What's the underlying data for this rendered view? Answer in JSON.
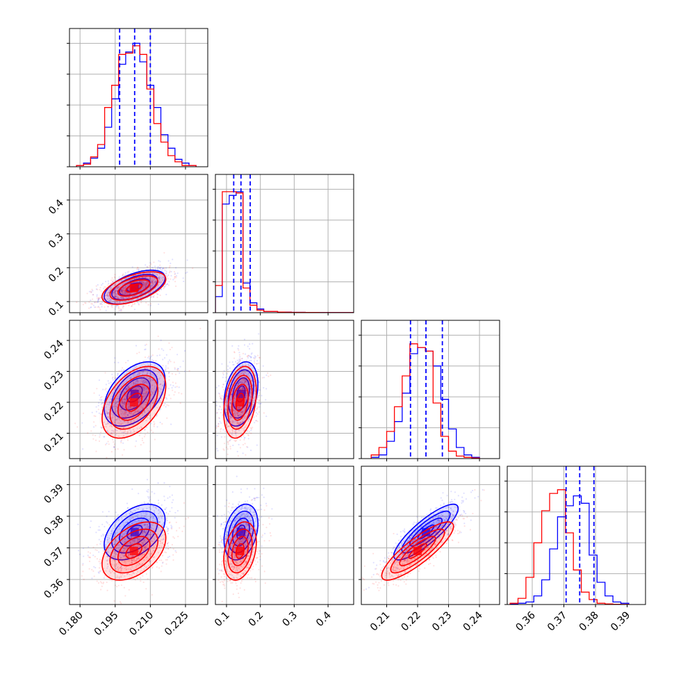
{
  "chart_data": {
    "type": "corner",
    "grid": true,
    "series": [
      {
        "color": "#0000ff"
      },
      {
        "color": "#ff0000"
      }
    ],
    "quantile_line_color": "#0000ff",
    "parameters": [
      {
        "range": [
          0.1755,
          0.2345
        ],
        "ticks": [
          0.18,
          0.195,
          0.21,
          0.225
        ],
        "tick_labels": [
          "0.180",
          "0.195",
          "0.210",
          "0.225"
        ]
      },
      {
        "range": [
          0.0672,
          0.4757
        ],
        "ticks": [
          0.1,
          0.2,
          0.3,
          0.4
        ],
        "tick_labels": [
          "0.1",
          "0.2",
          "0.3",
          "0.4"
        ]
      },
      {
        "range": [
          0.2018,
          0.2465
        ],
        "ticks": [
          0.21,
          0.22,
          0.23,
          0.24
        ],
        "tick_labels": [
          "0.21",
          "0.22",
          "0.23",
          "0.24"
        ]
      },
      {
        "range": [
          0.3521,
          0.3958
        ],
        "ticks": [
          0.36,
          0.37,
          0.38,
          0.39
        ],
        "tick_labels": [
          "0.36",
          "0.37",
          "0.38",
          "0.39"
        ]
      }
    ],
    "quantiles": [
      [
        0.1969,
        0.2033,
        0.21
      ],
      [
        0.1213,
        0.1427,
        0.17
      ],
      [
        0.2177,
        0.2227,
        0.228
      ],
      [
        0.3707,
        0.375,
        0.3795
      ]
    ],
    "marginals": [
      {
        "edges": [
          0.1785,
          0.1815,
          0.1845,
          0.1875,
          0.1905,
          0.1935,
          0.1965,
          0.1995,
          0.2025,
          0.2055,
          0.2085,
          0.2115,
          0.2145,
          0.2175,
          0.2205,
          0.2235,
          0.2265,
          0.2295
        ],
        "blue": [
          0.01,
          0.03,
          0.07,
          0.15,
          0.32,
          0.55,
          0.83,
          0.93,
          1.0,
          0.85,
          0.66,
          0.48,
          0.26,
          0.15,
          0.06,
          0.03,
          0.01
        ],
        "red": [
          0.01,
          0.02,
          0.08,
          0.18,
          0.48,
          0.66,
          0.91,
          0.92,
          0.98,
          0.91,
          0.63,
          0.35,
          0.2,
          0.09,
          0.04,
          0.01,
          0.01
        ]
      },
      {
        "edges": [
          0.0672,
          0.0876,
          0.108,
          0.1285,
          0.1489,
          0.1693,
          0.1897,
          0.2101,
          0.2306,
          0.251,
          0.2714,
          0.2918,
          0.3123,
          0.3327,
          0.3531,
          0.3735,
          0.3939,
          0.4144,
          0.4348,
          0.4552,
          0.4757
        ],
        "blue": [
          0.13,
          0.88,
          0.95,
          0.98,
          0.24,
          0.08,
          0.03,
          0.01,
          0.01,
          0.005,
          0.005,
          0.003,
          0.003,
          0.002,
          0.002,
          0.001,
          0.001,
          0.001,
          0.001,
          0.001
        ],
        "red": [
          0.22,
          0.98,
          0.98,
          0.97,
          0.2,
          0.06,
          0.02,
          0.01,
          0.01,
          0.005,
          0.004,
          0.003,
          0.003,
          0.002,
          0.002,
          0.001,
          0.001,
          0.001,
          0.001,
          0.001
        ]
      },
      {
        "edges": [
          0.205,
          0.2075,
          0.21,
          0.2125,
          0.215,
          0.2175,
          0.22,
          0.2225,
          0.225,
          0.2275,
          0.23,
          0.2325,
          0.235,
          0.2375,
          0.24
        ],
        "blue": [
          0.01,
          0.03,
          0.14,
          0.3,
          0.53,
          0.85,
          0.9,
          0.87,
          0.75,
          0.48,
          0.24,
          0.09,
          0.03,
          0.01
        ],
        "red": [
          0.03,
          0.09,
          0.22,
          0.42,
          0.67,
          0.93,
          0.9,
          0.87,
          0.45,
          0.18,
          0.06,
          0.02,
          0.01,
          0.005
        ]
      },
      {
        "edges": [
          0.353,
          0.3555,
          0.358,
          0.3605,
          0.363,
          0.3655,
          0.368,
          0.3705,
          0.373,
          0.3755,
          0.378,
          0.3805,
          0.383,
          0.3855,
          0.388,
          0.3905
        ],
        "blue": [
          0.005,
          0.01,
          0.02,
          0.07,
          0.2,
          0.45,
          0.71,
          0.8,
          0.88,
          0.82,
          0.4,
          0.18,
          0.07,
          0.02,
          0.01
        ],
        "red": [
          0.01,
          0.05,
          0.22,
          0.5,
          0.76,
          0.9,
          0.93,
          0.58,
          0.28,
          0.1,
          0.04,
          0.01,
          0.005,
          0.002,
          0.001
        ]
      }
    ],
    "joint": {
      "blue": {
        "mean": [
          0.2033,
          0.1427,
          0.2227,
          0.375
        ],
        "sd": [
          0.0065,
          0.025,
          0.0052,
          0.0044
        ],
        "corr": [
          [
            1,
            0.55,
            0.45,
            0.45
          ],
          [
            0.55,
            1,
            0.3,
            0.3
          ],
          [
            0.45,
            0.3,
            1,
            0.85
          ],
          [
            0.45,
            0.3,
            0.85,
            1
          ]
        ]
      },
      "red": {
        "mean": [
          0.203,
          0.14,
          0.22,
          0.369
        ],
        "sd": [
          0.0068,
          0.024,
          0.0058,
          0.0046
        ],
        "corr": [
          [
            1,
            0.55,
            0.45,
            0.45
          ],
          [
            0.55,
            1,
            0.3,
            0.3
          ],
          [
            0.45,
            0.3,
            1,
            0.85
          ],
          [
            0.45,
            0.3,
            0.85,
            1
          ]
        ]
      },
      "contour_levels_sigma": [
        0.5,
        1.0,
        1.5,
        2.0
      ]
    }
  }
}
